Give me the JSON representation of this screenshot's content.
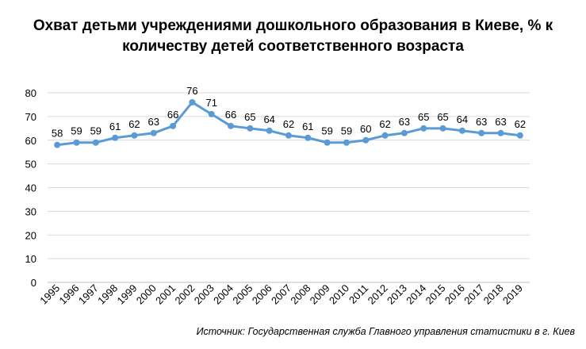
{
  "title_line1": "Охват детьми учреждениями дошкольного образования в Киеве, % к",
  "title_line2": "количеству детей соответственного возраста",
  "source": "Источник: Государственная служба Главного управления статистики в г. Киев",
  "colors": {
    "line": "#5B9BD5",
    "grid": "#D9D9D9",
    "axis": "#BFBFBF",
    "text": "#000000"
  },
  "chart_data": {
    "type": "line",
    "title": "Охват детьми учреждениями дошкольного образования в Киеве, % к количеству детей соответственного возраста",
    "xlabel": "",
    "ylabel": "",
    "ylim": [
      0,
      80
    ],
    "yticks": [
      0,
      10,
      20,
      30,
      40,
      50,
      60,
      70,
      80
    ],
    "grid": true,
    "legend": "none",
    "data_labels": true,
    "categories": [
      "1995",
      "1996",
      "1997",
      "1998",
      "1999",
      "2000",
      "2001",
      "2002",
      "2003",
      "2004",
      "2005",
      "2006",
      "2007",
      "2008",
      "2009",
      "2010",
      "2011",
      "2012",
      "2013",
      "2014",
      "2015",
      "2016",
      "2017",
      "2018",
      "2019"
    ],
    "series": [
      {
        "values": [
          58,
          59,
          59,
          61,
          62,
          63,
          66,
          76,
          71,
          66,
          65,
          64,
          62,
          61,
          59,
          59,
          60,
          62,
          63,
          65,
          65,
          64,
          63,
          63,
          62
        ]
      }
    ]
  }
}
